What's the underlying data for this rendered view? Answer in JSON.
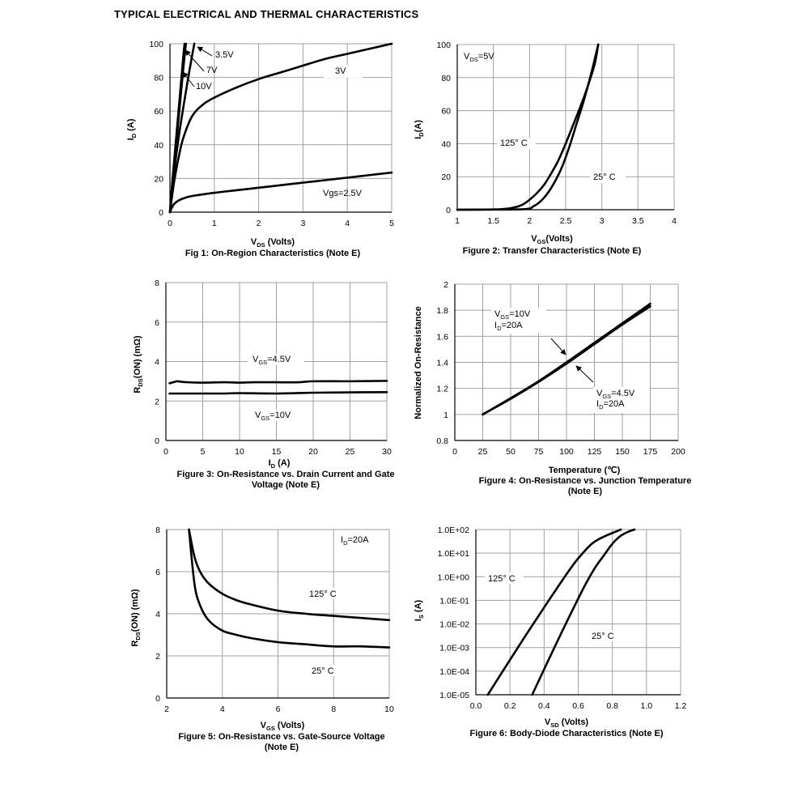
{
  "page_title": "TYPICAL ELECTRICAL AND THERMAL CHARACTERISTICS",
  "chart_data": [
    {
      "id": "fig1",
      "type": "line",
      "caption": "Fig 1: On-Region Characteristics (Note E)",
      "xlabel": "V_DS (Volts)",
      "ylabel": "I_D (A)",
      "xlim": [
        0,
        5
      ],
      "ylim": [
        0,
        100
      ],
      "xticks": [
        0,
        1,
        2,
        3,
        4,
        5
      ],
      "yticks": [
        0,
        20,
        40,
        60,
        80,
        100
      ],
      "grid": true,
      "series": [
        {
          "name": "10V",
          "x": [
            0,
            0.05,
            0.1,
            0.2,
            0.3,
            0.33
          ],
          "y": [
            0,
            17,
            32,
            62,
            92,
            100
          ]
        },
        {
          "name": "7V",
          "x": [
            0,
            0.05,
            0.1,
            0.2,
            0.3,
            0.36
          ],
          "y": [
            0,
            15,
            29,
            57,
            85,
            100
          ]
        },
        {
          "name": "3.5V",
          "x": [
            0,
            0.05,
            0.1,
            0.2,
            0.3,
            0.4,
            0.5,
            0.55
          ],
          "y": [
            0,
            13,
            25,
            45,
            62,
            78,
            93,
            100
          ]
        },
        {
          "name": "3V",
          "x": [
            0,
            0.05,
            0.1,
            0.2,
            0.3,
            0.5,
            0.75,
            1,
            1.5,
            2,
            2.5,
            3,
            3.5,
            4,
            4.5,
            5
          ],
          "y": [
            0,
            10,
            19,
            33,
            44,
            57,
            64,
            68,
            74,
            79,
            83,
            87,
            91,
            94,
            97,
            100
          ]
        },
        {
          "name": "Vgs=2.5V",
          "x": [
            0,
            0.05,
            0.1,
            0.2,
            0.4,
            0.6,
            1,
            1.5,
            2,
            2.5,
            3,
            3.5,
            4,
            4.5,
            5
          ],
          "y": [
            0,
            3,
            5,
            7,
            9,
            10,
            11.5,
            13,
            14.5,
            16,
            17.5,
            19,
            20.5,
            22,
            23.5
          ]
        }
      ],
      "annotations": [
        "3.5V",
        "7V",
        "10V",
        "3V",
        "Vgs=2.5V"
      ]
    },
    {
      "id": "fig2",
      "type": "line",
      "caption": "Figure 2: Transfer Characteristics (Note E)",
      "xlabel": "V_GS(Volts)",
      "ylabel": "I_D(A)",
      "xlim": [
        1,
        4
      ],
      "ylim": [
        0,
        100
      ],
      "xticks": [
        1,
        1.5,
        2,
        2.5,
        3,
        3.5,
        4
      ],
      "yticks": [
        0,
        20,
        40,
        60,
        80,
        100
      ],
      "grid": true,
      "condition": "V_DS=5V",
      "series": [
        {
          "name": "125° C",
          "x": [
            1,
            1.6,
            1.8,
            1.9,
            2.0,
            2.1,
            2.2,
            2.3,
            2.4,
            2.5,
            2.6,
            2.7,
            2.8,
            2.9,
            2.95
          ],
          "y": [
            0,
            0.3,
            1.5,
            3,
            6,
            10,
            15,
            22,
            30,
            40,
            51,
            62,
            74,
            88,
            100
          ]
        },
        {
          "name": "25° C",
          "x": [
            1,
            1.9,
            2.05,
            2.15,
            2.25,
            2.35,
            2.45,
            2.55,
            2.65,
            2.75,
            2.85,
            2.95
          ],
          "y": [
            0,
            0.3,
            2,
            5,
            10,
            17,
            26,
            38,
            52,
            66,
            82,
            100
          ]
        }
      ],
      "annotations": [
        "125° C",
        "25° C"
      ]
    },
    {
      "id": "fig3",
      "type": "line",
      "caption": "Figure 3: On-Resistance vs. Drain Current and Gate Voltage (Note E)",
      "caption_lines": [
        "Figure 3: On-Resistance vs. Drain Current and Gate",
        "Voltage (Note E)"
      ],
      "xlabel": "I_D (A)",
      "ylabel": "R_DS(ON) (mΩ)",
      "xlim": [
        0,
        30
      ],
      "ylim": [
        0,
        8
      ],
      "xticks": [
        0,
        5,
        10,
        15,
        20,
        25,
        30
      ],
      "yticks": [
        0,
        2,
        4,
        6,
        8
      ],
      "grid": true,
      "series": [
        {
          "name": "V_GS=4.5V",
          "x": [
            0.5,
            1,
            1.5,
            2,
            3,
            5,
            8,
            10,
            12,
            15,
            18,
            20,
            25,
            30
          ],
          "y": [
            2.9,
            2.95,
            3.0,
            2.98,
            2.95,
            2.93,
            2.95,
            2.93,
            2.95,
            2.95,
            2.95,
            3.0,
            3.0,
            3.02
          ]
        },
        {
          "name": "V_GS=10V",
          "x": [
            0.5,
            2,
            5,
            8,
            10,
            15,
            20,
            25,
            30
          ],
          "y": [
            2.38,
            2.38,
            2.38,
            2.38,
            2.4,
            2.38,
            2.42,
            2.44,
            2.45
          ]
        }
      ],
      "annotations": [
        "V_GS=4.5V",
        "V_GS=10V"
      ]
    },
    {
      "id": "fig4",
      "type": "line",
      "caption": "Figure 4: On-Resistance vs. Junction Temperature (Note E)",
      "caption_lines": [
        "Figure 4: On-Resistance vs. Junction Temperature",
        "(Note E)"
      ],
      "xlabel": "Temperature (℃)",
      "ylabel": "Normalized On-Resistance",
      "xlim": [
        0,
        200
      ],
      "ylim": [
        0.8,
        2
      ],
      "xticks": [
        0,
        25,
        50,
        75,
        100,
        125,
        150,
        175,
        200
      ],
      "yticks": [
        0.8,
        1,
        1.2,
        1.4,
        1.6,
        1.8,
        2
      ],
      "grid": true,
      "series": [
        {
          "name": "V_GS=10V, I_D=20A",
          "x": [
            25,
            50,
            75,
            100,
            125,
            150,
            175
          ],
          "y": [
            1.0,
            1.12,
            1.25,
            1.39,
            1.54,
            1.69,
            1.83
          ]
        },
        {
          "name": "V_GS=4.5V, I_D=20A",
          "x": [
            25,
            50,
            75,
            100,
            125,
            150,
            175
          ],
          "y": [
            1.0,
            1.125,
            1.255,
            1.4,
            1.55,
            1.7,
            1.85
          ]
        }
      ],
      "annotations": [
        "V_GS=10V",
        "I_D=20A",
        "V_GS=4.5V",
        "I_D=20A"
      ]
    },
    {
      "id": "fig5",
      "type": "line",
      "caption": "Figure 5: On-Resistance vs. Gate-Source Voltage (Note E)",
      "caption_lines": [
        "Figure 5: On-Resistance vs. Gate-Source Voltage",
        "(Note E)"
      ],
      "xlabel": "V_GS (Volts)",
      "ylabel": "R_DS(ON) (mΩ)",
      "xlim": [
        2,
        10
      ],
      "ylim": [
        0,
        8
      ],
      "xticks": [
        2,
        4,
        6,
        8,
        10
      ],
      "yticks": [
        0,
        2,
        4,
        6,
        8
      ],
      "grid": true,
      "condition": "I_D=20A",
      "series": [
        {
          "name": "125° C",
          "x": [
            2.8,
            3,
            3.2,
            3.5,
            4,
            4.5,
            5,
            6,
            7,
            8,
            9,
            10
          ],
          "y": [
            8,
            6.7,
            6.0,
            5.45,
            4.95,
            4.65,
            4.45,
            4.15,
            4.0,
            3.9,
            3.8,
            3.7
          ]
        },
        {
          "name": "25° C",
          "x": [
            2.8,
            3,
            3.2,
            3.5,
            4,
            4.5,
            5,
            6,
            7,
            8,
            9,
            10
          ],
          "y": [
            8,
            5.4,
            4.4,
            3.7,
            3.2,
            3.0,
            2.85,
            2.65,
            2.55,
            2.45,
            2.45,
            2.4
          ]
        }
      ],
      "annotations": [
        "125° C",
        "25° C"
      ]
    },
    {
      "id": "fig6",
      "type": "line",
      "caption": "Figure 6: Body-Diode Characteristics (Note E)",
      "xlabel": "V_SD (Volts)",
      "ylabel": "I_S (A)",
      "xlim": [
        0,
        1.2
      ],
      "ylim": [
        1e-05,
        100
      ],
      "yscale": "log",
      "xticks": [
        0.0,
        0.2,
        0.4,
        0.6,
        0.8,
        1.0,
        1.2
      ],
      "xtick_labels": [
        "0.0",
        "0.2",
        "0.4",
        "0.6",
        "0.8",
        "1.0",
        "1.2"
      ],
      "yticks": [
        1e-05,
        0.0001,
        0.001,
        0.01,
        0.1,
        1,
        10,
        100
      ],
      "ytick_labels": [
        "1.0E-05",
        "1.0E-04",
        "1.0E-03",
        "1.0E-02",
        "1.0E-01",
        "1.0E+00",
        "1.0E+01",
        "1.0E+02"
      ],
      "grid": true,
      "series": [
        {
          "name": "125° C",
          "x": [
            0.07,
            0.2,
            0.3,
            0.4,
            0.5,
            0.55,
            0.6,
            0.68,
            0.75,
            0.85
          ],
          "y": [
            1e-05,
            0.0003,
            0.004,
            0.05,
            0.6,
            2,
            6,
            25,
            50,
            100
          ]
        },
        {
          "name": "25° C",
          "x": [
            0.33,
            0.4,
            0.5,
            0.6,
            0.65,
            0.7,
            0.75,
            0.8,
            0.85,
            0.9,
            0.93
          ],
          "y": [
            1e-05,
            0.00012,
            0.004,
            0.12,
            0.6,
            2.5,
            8,
            25,
            55,
            85,
            100
          ]
        }
      ],
      "annotations": [
        "125° C",
        "25° C"
      ]
    }
  ]
}
